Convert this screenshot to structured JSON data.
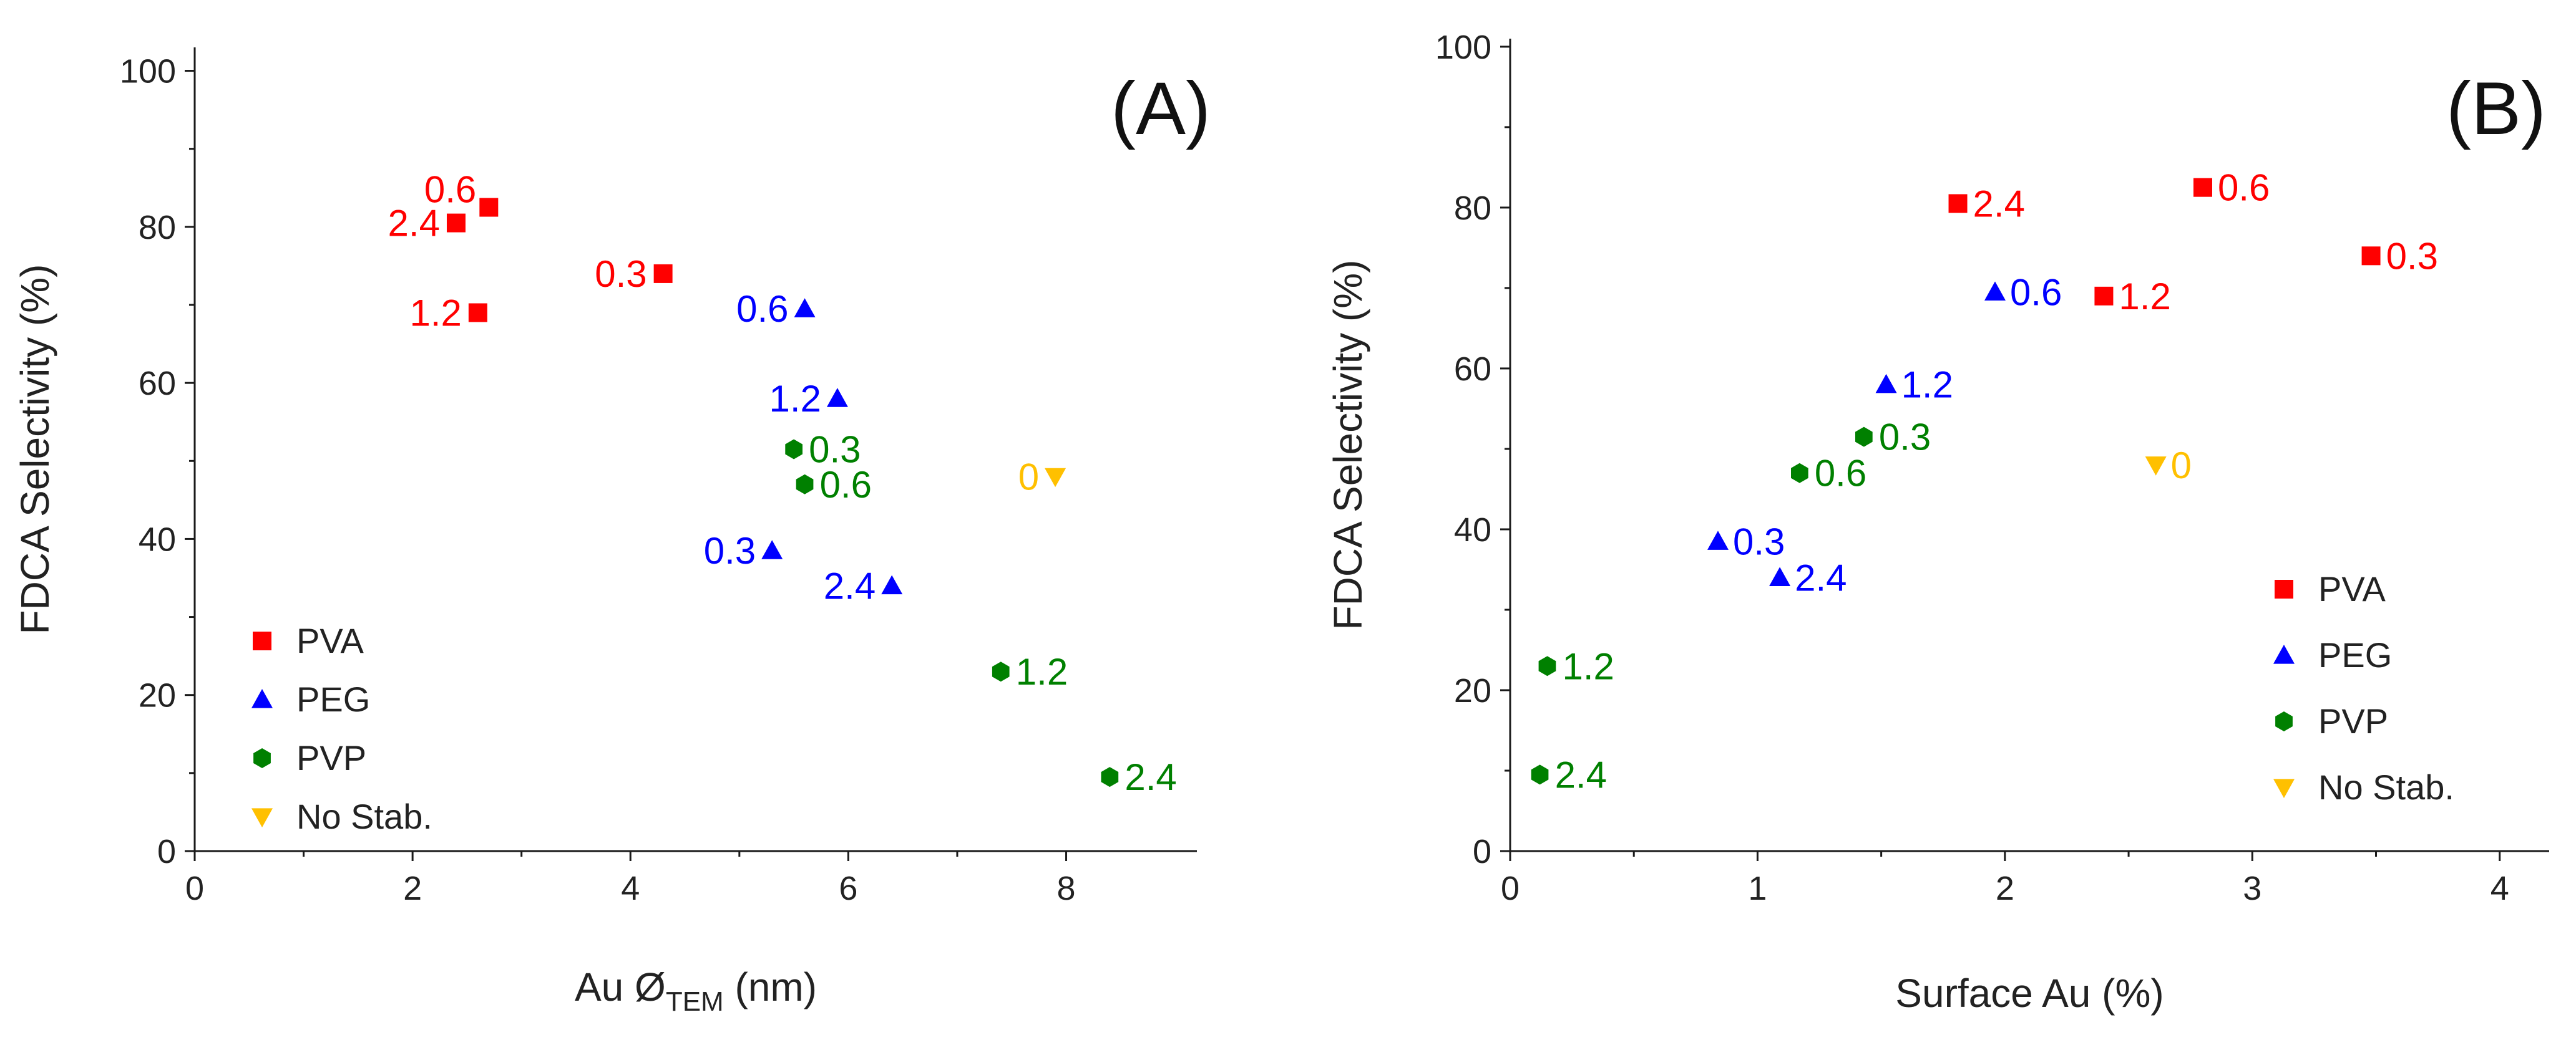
{
  "chart_data": [
    {
      "panel_label": "(A)",
      "type": "scatter",
      "title": "",
      "xlabel": "Au Ø",
      "xlabel_sub": "TEM",
      "xlabel_suffix": " (nm)",
      "ylabel": "FDCA Selectivity (%)",
      "xlim": [
        0,
        9.2
      ],
      "ylim": [
        0,
        103
      ],
      "xticks": [
        0,
        2,
        4,
        6,
        8
      ],
      "yticks": [
        0,
        20,
        40,
        60,
        80,
        100
      ],
      "grid": false,
      "legend_position": "bottom-left",
      "series": [
        {
          "name": "PVA",
          "marker": "square",
          "color": "#ff0000",
          "points": [
            {
              "x": 2.7,
              "y": 82.5,
              "label": "0.6",
              "label_side": "upper-left"
            },
            {
              "x": 2.4,
              "y": 80.5,
              "label": "2.4",
              "label_side": "left"
            },
            {
              "x": 4.3,
              "y": 74,
              "label": "0.3",
              "label_side": "left"
            },
            {
              "x": 2.6,
              "y": 69,
              "label": "1.2",
              "label_side": "left"
            }
          ]
        },
        {
          "name": "PEG",
          "marker": "triangle-up",
          "color": "#0000ff",
          "points": [
            {
              "x": 5.6,
              "y": 69.5,
              "label": "0.6",
              "label_side": "left"
            },
            {
              "x": 5.9,
              "y": 58,
              "label": "1.2",
              "label_side": "left"
            },
            {
              "x": 5.3,
              "y": 38.5,
              "label": "0.3",
              "label_side": "left"
            },
            {
              "x": 6.4,
              "y": 34,
              "label": "2.4",
              "label_side": "left"
            }
          ]
        },
        {
          "name": "PVP",
          "marker": "hexagon",
          "color": "#008000",
          "points": [
            {
              "x": 5.5,
              "y": 51.5,
              "label": "0.3",
              "label_side": "right"
            },
            {
              "x": 5.6,
              "y": 47,
              "label": "0.6",
              "label_side": "right"
            },
            {
              "x": 7.4,
              "y": 23,
              "label": "1.2",
              "label_side": "right"
            },
            {
              "x": 8.4,
              "y": 9.5,
              "label": "2.4",
              "label_side": "right"
            }
          ]
        },
        {
          "name": "No Stab.",
          "marker": "triangle-down",
          "color": "#ffc000",
          "points": [
            {
              "x": 7.9,
              "y": 48,
              "label": "0",
              "label_side": "left"
            }
          ]
        }
      ]
    },
    {
      "panel_label": "(B)",
      "type": "scatter",
      "title": "",
      "xlabel": "Surface Au (%)",
      "xlabel_sub": "",
      "xlabel_suffix": "",
      "ylabel": "FDCA Selectivity (%)",
      "xlim": [
        0,
        4.2
      ],
      "ylim": [
        0,
        101
      ],
      "xticks": [
        0,
        1,
        2,
        3,
        4
      ],
      "yticks": [
        0,
        20,
        40,
        60,
        80,
        100
      ],
      "grid": false,
      "legend_position": "bottom-right",
      "series": [
        {
          "name": "PVA",
          "marker": "square",
          "color": "#ff0000",
          "points": [
            {
              "x": 1.81,
              "y": 80.5,
              "label": "2.4",
              "label_side": "right"
            },
            {
              "x": 2.8,
              "y": 82.5,
              "label": "0.6",
              "label_side": "right"
            },
            {
              "x": 3.48,
              "y": 74,
              "label": "0.3",
              "label_side": "right"
            },
            {
              "x": 2.4,
              "y": 69,
              "label": "1.2",
              "label_side": "right"
            }
          ]
        },
        {
          "name": "PEG",
          "marker": "triangle-up",
          "color": "#0000ff",
          "points": [
            {
              "x": 1.96,
              "y": 69.5,
              "label": "0.6",
              "label_side": "right"
            },
            {
              "x": 1.52,
              "y": 58,
              "label": "1.2",
              "label_side": "right"
            },
            {
              "x": 0.84,
              "y": 38.5,
              "label": "0.3",
              "label_side": "right"
            },
            {
              "x": 1.09,
              "y": 34,
              "label": "2.4",
              "label_side": "right"
            }
          ]
        },
        {
          "name": "PVP",
          "marker": "hexagon",
          "color": "#008000",
          "points": [
            {
              "x": 1.43,
              "y": 51.5,
              "label": "0.3",
              "label_side": "right"
            },
            {
              "x": 1.17,
              "y": 47,
              "label": "0.6",
              "label_side": "right"
            },
            {
              "x": 0.15,
              "y": 23,
              "label": "1.2",
              "label_side": "right"
            },
            {
              "x": 0.12,
              "y": 9.5,
              "label": "2.4",
              "label_side": "right"
            }
          ]
        },
        {
          "name": "No Stab.",
          "marker": "triangle-down",
          "color": "#ffc000",
          "points": [
            {
              "x": 2.61,
              "y": 48,
              "label": "0",
              "label_side": "right"
            }
          ]
        }
      ]
    }
  ]
}
